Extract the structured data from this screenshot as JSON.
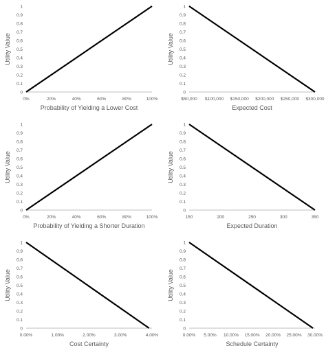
{
  "chart_data": [
    {
      "type": "line",
      "ylabel": "Utility Value",
      "xlabel": "Probability of Yielding a Lower Cost",
      "y_ticks": [
        "0",
        "0.1",
        "0.2",
        "0.3",
        "0.4",
        "0.5",
        "0.6",
        "0.7",
        "0.8",
        "0.9",
        "1"
      ],
      "x_ticks": [
        "0%",
        "20%",
        "40%",
        "60%",
        "80%",
        "100%"
      ],
      "xlim": [
        0,
        100
      ],
      "ylim": [
        0,
        1
      ],
      "x": [
        0,
        100
      ],
      "y": [
        0,
        1
      ],
      "line_color": "#000000"
    },
    {
      "type": "line",
      "ylabel": "Utility Value",
      "xlabel": "Expected Cost",
      "y_ticks": [
        "0",
        "0.1",
        "0.2",
        "0.3",
        "0.4",
        "0.5",
        "0.6",
        "0.7",
        "0.8",
        "0.9",
        "1"
      ],
      "x_ticks": [
        "$50,000",
        "$100,000",
        "$150,000",
        "$200,000",
        "$250,000",
        "$300,000"
      ],
      "xlim": [
        50000,
        300000
      ],
      "ylim": [
        0,
        1
      ],
      "x": [
        50000,
        300000
      ],
      "y": [
        1,
        0
      ],
      "line_color": "#000000"
    },
    {
      "type": "line",
      "ylabel": "Utility Value",
      "xlabel": "Probability of Yielding a Shorter Duration",
      "y_ticks": [
        "0",
        "0.1",
        "0.2",
        "0.3",
        "0.4",
        "0.5",
        "0.6",
        "0.7",
        "0.8",
        "0.9",
        "1"
      ],
      "x_ticks": [
        "0%",
        "20%",
        "40%",
        "60%",
        "80%",
        "100%"
      ],
      "xlim": [
        0,
        100
      ],
      "ylim": [
        0,
        1
      ],
      "x": [
        0,
        100
      ],
      "y": [
        0,
        1
      ],
      "line_color": "#000000"
    },
    {
      "type": "line",
      "ylabel": "Utility Value",
      "xlabel": "Expected Duration",
      "y_ticks": [
        "0",
        "0.1",
        "0.2",
        "0.3",
        "0.4",
        "0.5",
        "0.6",
        "0.7",
        "0.8",
        "0.9",
        "1"
      ],
      "x_ticks": [
        "150",
        "200",
        "250",
        "300",
        "350"
      ],
      "xlim": [
        150,
        350
      ],
      "ylim": [
        0,
        1
      ],
      "x": [
        150,
        350
      ],
      "y": [
        1,
        0
      ],
      "line_color": "#000000"
    },
    {
      "type": "line",
      "ylabel": "Utility Value",
      "xlabel": "Cost Certainty",
      "y_ticks": [
        "0",
        "0.1",
        "0.2",
        "0.3",
        "0.4",
        "0.5",
        "0.6",
        "0.7",
        "0.8",
        "0.9",
        "1"
      ],
      "x_ticks": [
        "0.00%",
        "1.00%",
        "2.00%",
        "3.00%",
        "4.00%"
      ],
      "xlim": [
        0,
        4.4
      ],
      "ylim": [
        0,
        1
      ],
      "x": [
        0,
        4.3
      ],
      "y": [
        1,
        0
      ],
      "line_color": "#000000"
    },
    {
      "type": "line",
      "ylabel": "Utility Value",
      "xlabel": "Schedule Certainty",
      "y_ticks": [
        "0",
        "0.1",
        "0.2",
        "0.3",
        "0.4",
        "0.5",
        "0.6",
        "0.7",
        "0.8",
        "0.9",
        "1"
      ],
      "x_ticks": [
        "0.00%",
        "5.00%",
        "10.00%",
        "15.00%",
        "20.00%",
        "25.00%",
        "30.00%"
      ],
      "xlim": [
        0,
        31.5
      ],
      "ylim": [
        0,
        1
      ],
      "x": [
        0,
        31
      ],
      "y": [
        1,
        0
      ],
      "line_color": "#000000"
    }
  ]
}
